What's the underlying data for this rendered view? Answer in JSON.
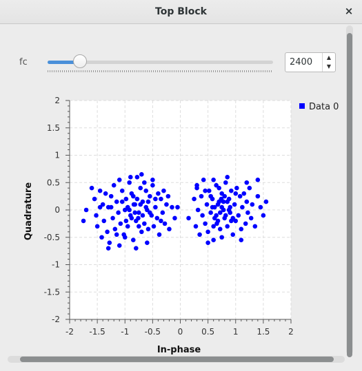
{
  "window": {
    "title": "Top Block",
    "close_glyph": "×"
  },
  "control": {
    "label": "fc",
    "value": "2400",
    "slider_fraction": 0.143,
    "spin_up_glyph": "▲",
    "spin_down_glyph": "▼"
  },
  "icons": {
    "close": "close-icon",
    "spin_up": "spin-up-icon",
    "spin_down": "spin-down-icon"
  },
  "colors": {
    "accent": "#4a90d9",
    "series": "#0000ff"
  },
  "chart_data": {
    "type": "scatter",
    "xlabel": "In-phase",
    "ylabel": "Quadrature",
    "xlim": [
      -2,
      2
    ],
    "ylim": [
      -2,
      2
    ],
    "xticks": [
      "-2",
      "-1.5",
      "-1",
      "-0.5",
      "0",
      "0.5",
      "1",
      "1.5",
      "2"
    ],
    "yticks": [
      "2",
      "1.5",
      "1",
      "0.5",
      "0",
      "-0.5",
      "-1",
      "-1.5",
      "-2"
    ],
    "grid": true,
    "legend": "top-right",
    "series": [
      {
        "name": "Data 0",
        "points": [
          [
            -1.6,
            0.4
          ],
          [
            -1.55,
            0.2
          ],
          [
            -1.52,
            -0.1
          ],
          [
            -1.5,
            -0.3
          ],
          [
            -1.45,
            0.35
          ],
          [
            -1.42,
            -0.5
          ],
          [
            -1.4,
            0.1
          ],
          [
            -1.38,
            -0.2
          ],
          [
            -1.35,
            0.3
          ],
          [
            -1.32,
            -0.4
          ],
          [
            -1.3,
            0.05
          ],
          [
            -1.28,
            -0.6
          ],
          [
            -1.25,
            0.25
          ],
          [
            -1.22,
            -0.15
          ],
          [
            -1.2,
            0.45
          ],
          [
            -1.18,
            -0.35
          ],
          [
            -1.15,
            0.15
          ],
          [
            -1.12,
            -0.05
          ],
          [
            -1.1,
            0.55
          ],
          [
            -1.08,
            -0.25
          ],
          [
            -1.05,
            0.35
          ],
          [
            -1.02,
            -0.45
          ],
          [
            -1.0,
            0.0
          ],
          [
            -0.98,
            0.2
          ],
          [
            -0.95,
            -0.3
          ],
          [
            -0.92,
            0.5
          ],
          [
            -0.9,
            -0.1
          ],
          [
            -0.88,
            0.3
          ],
          [
            -0.85,
            -0.55
          ],
          [
            -0.82,
            0.1
          ],
          [
            -0.8,
            -0.2
          ],
          [
            -0.78,
            0.6
          ],
          [
            -0.75,
            -0.05
          ],
          [
            -0.72,
            0.4
          ],
          [
            -0.7,
            -0.4
          ],
          [
            -0.68,
            0.15
          ],
          [
            -0.65,
            -0.25
          ],
          [
            -0.62,
            0.35
          ],
          [
            -0.6,
            0.0
          ],
          [
            -0.58,
            -0.35
          ],
          [
            -0.55,
            0.25
          ],
          [
            -0.52,
            -0.1
          ],
          [
            -0.5,
            0.45
          ],
          [
            -0.48,
            -0.3
          ],
          [
            -0.45,
            0.05
          ],
          [
            -0.42,
            -0.15
          ],
          [
            -0.4,
            0.3
          ],
          [
            -0.38,
            -0.45
          ],
          [
            -0.35,
            0.2
          ],
          [
            -0.32,
            -0.05
          ],
          [
            -0.3,
            0.35
          ],
          [
            -0.28,
            -0.25
          ],
          [
            -0.25,
            0.1
          ],
          [
            -0.22,
            0.25
          ],
          [
            -0.2,
            -0.35
          ],
          [
            -0.15,
            0.05
          ],
          [
            -0.1,
            -0.15
          ],
          [
            -0.05,
            0.05
          ],
          [
            -1.7,
            0.0
          ],
          [
            -1.75,
            -0.2
          ],
          [
            -1.25,
            0.05
          ],
          [
            -1.15,
            -0.45
          ],
          [
            -1.05,
            0.15
          ],
          [
            -0.95,
            0.05
          ],
          [
            -0.85,
            0.25
          ],
          [
            -0.75,
            -0.3
          ],
          [
            -0.65,
            0.5
          ],
          [
            -0.55,
            -0.05
          ],
          [
            -0.45,
            0.2
          ],
          [
            -0.35,
            -0.2
          ],
          [
            -1.1,
            -0.65
          ],
          [
            -0.9,
            0.6
          ],
          [
            -0.7,
            0.65
          ],
          [
            -0.6,
            -0.6
          ],
          [
            -1.3,
            -0.7
          ],
          [
            -0.8,
            -0.7
          ],
          [
            -0.5,
            0.55
          ],
          [
            -1.45,
            0.05
          ],
          [
            -1.0,
            -0.5
          ],
          [
            -0.72,
            0.1
          ],
          [
            -0.88,
            -0.15
          ],
          [
            -0.78,
            0.2
          ],
          [
            -0.68,
            -0.1
          ],
          [
            -0.92,
            0.0
          ],
          [
            -0.82,
            -0.05
          ],
          [
            -0.62,
            0.05
          ],
          [
            -0.98,
            -0.2
          ],
          [
            -0.58,
            0.15
          ],
          [
            -0.76,
            -0.15
          ],
          [
            -0.84,
            0.1
          ],
          [
            0.15,
            -0.15
          ],
          [
            0.25,
            0.2
          ],
          [
            0.28,
            -0.3
          ],
          [
            0.3,
            0.45
          ],
          [
            0.32,
            0.0
          ],
          [
            0.35,
            -0.45
          ],
          [
            0.38,
            0.25
          ],
          [
            0.4,
            -0.1
          ],
          [
            0.42,
            0.55
          ],
          [
            0.45,
            -0.25
          ],
          [
            0.48,
            0.1
          ],
          [
            0.5,
            -0.4
          ],
          [
            0.52,
            0.35
          ],
          [
            0.55,
            -0.05
          ],
          [
            0.58,
            0.2
          ],
          [
            0.6,
            -0.55
          ],
          [
            0.62,
            0.05
          ],
          [
            0.65,
            0.45
          ],
          [
            0.68,
            -0.2
          ],
          [
            0.7,
            0.15
          ],
          [
            0.72,
            -0.35
          ],
          [
            0.75,
            0.3
          ],
          [
            0.78,
            0.0
          ],
          [
            0.8,
            -0.15
          ],
          [
            0.82,
            0.5
          ],
          [
            0.85,
            -0.3
          ],
          [
            0.88,
            0.2
          ],
          [
            0.9,
            -0.05
          ],
          [
            0.92,
            0.35
          ],
          [
            0.95,
            -0.45
          ],
          [
            0.98,
            0.1
          ],
          [
            1.0,
            -0.2
          ],
          [
            1.02,
            0.4
          ],
          [
            1.05,
            -0.1
          ],
          [
            1.08,
            0.25
          ],
          [
            1.1,
            -0.35
          ],
          [
            1.12,
            0.05
          ],
          [
            1.15,
            0.3
          ],
          [
            1.18,
            -0.25
          ],
          [
            1.2,
            0.15
          ],
          [
            1.22,
            -0.05
          ],
          [
            1.25,
            0.4
          ],
          [
            1.28,
            -0.15
          ],
          [
            1.3,
            0.1
          ],
          [
            1.35,
            -0.3
          ],
          [
            1.4,
            0.25
          ],
          [
            1.45,
            0.05
          ],
          [
            1.5,
            -0.1
          ],
          [
            1.55,
            0.15
          ],
          [
            0.55,
            0.25
          ],
          [
            0.65,
            -0.1
          ],
          [
            0.75,
            0.05
          ],
          [
            0.85,
            0.15
          ],
          [
            0.95,
            -0.15
          ],
          [
            0.45,
            0.35
          ],
          [
            0.7,
            0.4
          ],
          [
            0.6,
            -0.3
          ],
          [
            0.8,
            0.25
          ],
          [
            0.9,
            0.05
          ],
          [
            1.0,
            0.3
          ],
          [
            0.5,
            -0.6
          ],
          [
            0.6,
            0.55
          ],
          [
            0.75,
            -0.5
          ],
          [
            0.85,
            0.6
          ],
          [
            1.1,
            -0.55
          ],
          [
            1.2,
            0.5
          ],
          [
            0.68,
            0.1
          ],
          [
            0.72,
            -0.05
          ],
          [
            0.78,
            0.15
          ],
          [
            0.82,
            -0.1
          ],
          [
            0.62,
            -0.15
          ],
          [
            0.88,
            0.0
          ],
          [
            0.58,
            0.05
          ],
          [
            0.92,
            -0.2
          ],
          [
            0.74,
            0.2
          ],
          [
            0.66,
            -0.25
          ],
          [
            1.4,
            0.55
          ],
          [
            0.3,
            0.4
          ]
        ]
      }
    ]
  }
}
